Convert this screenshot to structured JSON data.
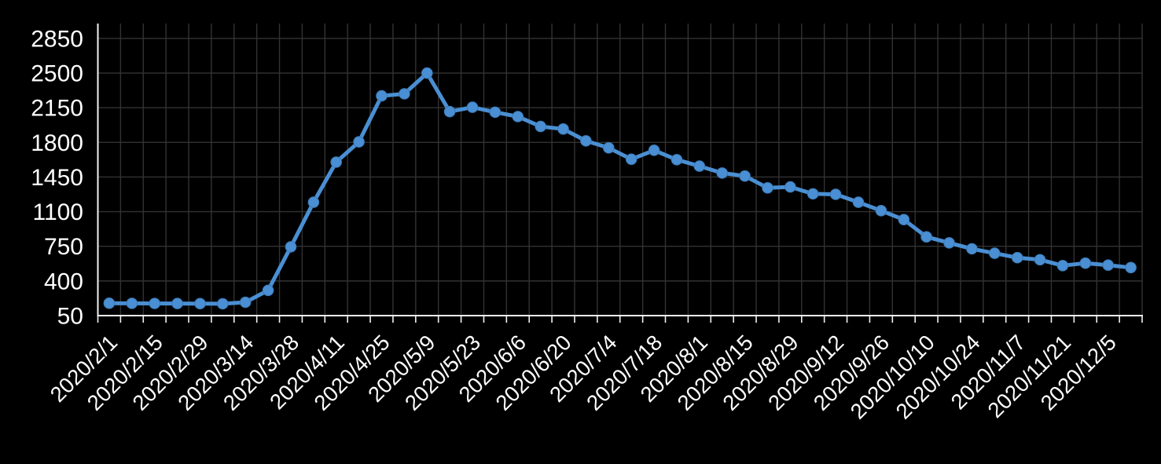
{
  "chart_data": {
    "type": "line",
    "title": "",
    "legend": "none",
    "grid": true,
    "x_label_rotation_deg": 45,
    "x": [
      "2020/2/1",
      "2020/2/8",
      "2020/2/15",
      "2020/2/22",
      "2020/2/29",
      "2020/3/7",
      "2020/3/14",
      "2020/3/21",
      "2020/3/28",
      "2020/4/4",
      "2020/4/11",
      "2020/4/18",
      "2020/4/25",
      "2020/5/2",
      "2020/5/9",
      "2020/5/16",
      "2020/5/23",
      "2020/5/30",
      "2020/6/6",
      "2020/6/13",
      "2020/6/20",
      "2020/6/27",
      "2020/7/4",
      "2020/7/11",
      "2020/7/18",
      "2020/7/25",
      "2020/8/1",
      "2020/8/8",
      "2020/8/15",
      "2020/8/22",
      "2020/8/29",
      "2020/9/5",
      "2020/9/12",
      "2020/9/19",
      "2020/9/26",
      "2020/10/3",
      "2020/10/10",
      "2020/10/17",
      "2020/10/24",
      "2020/10/31",
      "2020/11/7",
      "2020/11/14",
      "2020/11/21",
      "2020/11/28",
      "2020/12/5",
      "2020/12/12"
    ],
    "values": [
      175,
      174,
      173,
      172,
      171,
      170,
      185,
      305,
      745,
      1195,
      1600,
      1805,
      2270,
      2290,
      2500,
      2110,
      2155,
      2105,
      2060,
      1960,
      1935,
      1815,
      1745,
      1630,
      1720,
      1625,
      1560,
      1490,
      1460,
      1340,
      1350,
      1280,
      1275,
      1195,
      1110,
      1020,
      845,
      785,
      725,
      680,
      635,
      615,
      555,
      580,
      560,
      535
    ],
    "visible_x_tick_labels": [
      "2020/2/1",
      "2020/2/15",
      "2020/2/29",
      "2020/3/14",
      "2020/3/28",
      "2020/4/11",
      "2020/4/25",
      "2020/5/9",
      "2020/5/23",
      "2020/6/6",
      "2020/6/20",
      "2020/7/4",
      "2020/7/18",
      "2020/8/1",
      "2020/8/15",
      "2020/8/29",
      "2020/9/12",
      "2020/9/26",
      "2020/10/10",
      "2020/10/24",
      "2020/11/7",
      "2020/11/21",
      "2020/12/5"
    ],
    "x_tick_label_every": 2,
    "y_ticks": [
      50,
      400,
      750,
      1100,
      1450,
      1800,
      2150,
      2500,
      2850
    ],
    "ylim": [
      50,
      3000
    ],
    "y_major_unit": 350,
    "colors": {
      "background": "#000000",
      "line": "#4a8fd3",
      "marker": "#4a8fd3",
      "marker_edge": "#3b79b5",
      "gridline": "#323232",
      "axis": "#f2f2f2",
      "tick_label": "#ffffff"
    }
  }
}
